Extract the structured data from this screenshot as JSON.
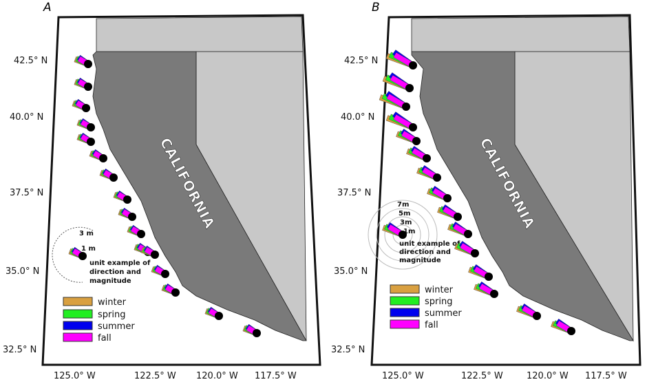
{
  "panels": [
    {
      "label": "A",
      "lat_ticks": [
        "42.5° N",
        "40.0° N",
        "37.5° N",
        "35.0° N",
        "32.5° N"
      ],
      "lon_ticks": [
        "125.0° W",
        "122.5° W",
        "120.0° W",
        "117.5° W"
      ],
      "state_label": "CALIFORNIA",
      "scale_rings": [
        "3 m",
        "1 m"
      ],
      "unit_example": [
        "unit example of",
        "direction and",
        "magnitude"
      ],
      "legend": [
        "winter",
        "spring",
        "summer",
        "fall"
      ]
    },
    {
      "label": "B",
      "lat_ticks": [
        "42.5° N",
        "40.0° N",
        "37.5° N",
        "35.0° N",
        "32.5° N"
      ],
      "lon_ticks": [
        "125.0° W",
        "122.5° W",
        "120.0° W",
        "117.5° W"
      ],
      "state_label": "CALIFORNIA",
      "scale_rings": [
        "7m",
        "5m",
        "3m",
        "1m"
      ],
      "unit_example": [
        "unit example of",
        "direction and",
        "magnitude"
      ],
      "legend": [
        "winter",
        "spring",
        "summer",
        "fall"
      ]
    }
  ],
  "colors": {
    "winter": "#d9a040",
    "spring": "#22ee22",
    "summer": "#0000ee",
    "fall": "#ff00ff",
    "california": "#7a7a7a",
    "neighbors": "#c8c8c8"
  }
}
